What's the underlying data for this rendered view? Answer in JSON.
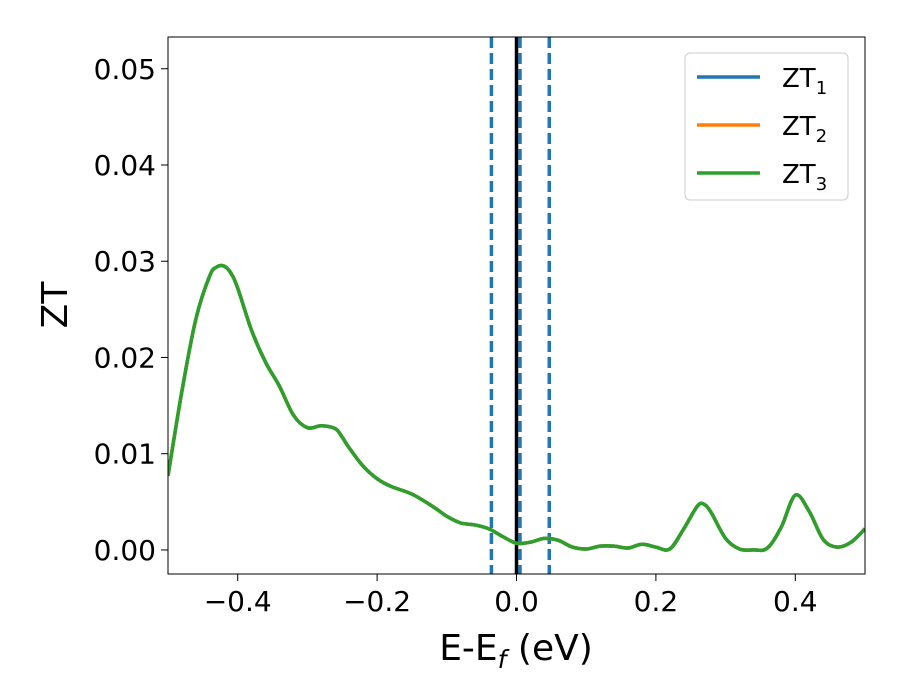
{
  "chart_data": {
    "type": "line",
    "xlabel": "E-E",
    "xlabel_sub": "f",
    "xlabel_unit": " (eV)",
    "ylabel": "ZT",
    "xlim": [
      -0.5,
      0.5
    ],
    "ylim": [
      -0.0025,
      0.0533
    ],
    "grid": false,
    "legend_position": "top-right",
    "x_ticks": [
      -0.4,
      -0.2,
      0.0,
      0.2,
      0.4
    ],
    "x_tick_labels": [
      "−0.4",
      "−0.2",
      "0.0",
      "0.2",
      "0.4"
    ],
    "y_ticks": [
      0.0,
      0.01,
      0.02,
      0.03,
      0.04,
      0.05
    ],
    "y_tick_labels": [
      "0.00",
      "0.01",
      "0.02",
      "0.03",
      "0.04",
      "0.05"
    ],
    "series": [
      {
        "name": "ZT",
        "sub": "1",
        "color": "#1f77b4"
      },
      {
        "name": "ZT",
        "sub": "2",
        "color": "#ff7f0e"
      },
      {
        "name": "ZT",
        "sub": "3",
        "color": "#2ca02c"
      }
    ],
    "curve": {
      "x": [
        -0.5,
        -0.48,
        -0.46,
        -0.44,
        -0.43,
        -0.42,
        -0.41,
        -0.4,
        -0.38,
        -0.36,
        -0.34,
        -0.32,
        -0.3,
        -0.28,
        -0.26,
        -0.25,
        -0.24,
        -0.22,
        -0.2,
        -0.18,
        -0.15,
        -0.12,
        -0.1,
        -0.08,
        -0.06,
        -0.04,
        -0.02,
        0.0,
        0.02,
        0.04,
        0.06,
        0.08,
        0.1,
        0.12,
        0.14,
        0.16,
        0.18,
        0.2,
        0.22,
        0.24,
        0.26,
        0.27,
        0.28,
        0.3,
        0.32,
        0.34,
        0.36,
        0.38,
        0.4,
        0.42,
        0.44,
        0.46,
        0.48,
        0.5
      ],
      "y": [
        0.0077,
        0.0165,
        0.024,
        0.0285,
        0.0294,
        0.0295,
        0.0288,
        0.0272,
        0.0228,
        0.0195,
        0.017,
        0.014,
        0.0127,
        0.0129,
        0.0126,
        0.0117,
        0.0106,
        0.0087,
        0.0074,
        0.0066,
        0.0058,
        0.0045,
        0.0035,
        0.0028,
        0.0026,
        0.0022,
        0.0014,
        0.0007,
        0.0008,
        0.0012,
        0.001,
        0.0003,
        0.0001,
        0.0004,
        0.0004,
        0.0002,
        0.0006,
        0.0003,
        0.0001,
        0.0022,
        0.0046,
        0.0047,
        0.0038,
        0.0012,
        0.0001,
        0.0,
        0.0002,
        0.0024,
        0.0057,
        0.004,
        0.0011,
        0.0003,
        0.0008,
        0.0022
      ]
    },
    "vlines_solid": [
      0.0
    ],
    "vlines_dashed": [
      -0.036,
      0.005,
      0.047
    ],
    "vline_solid_color": "#000000",
    "vline_dashed_color": "#1f77b4"
  }
}
